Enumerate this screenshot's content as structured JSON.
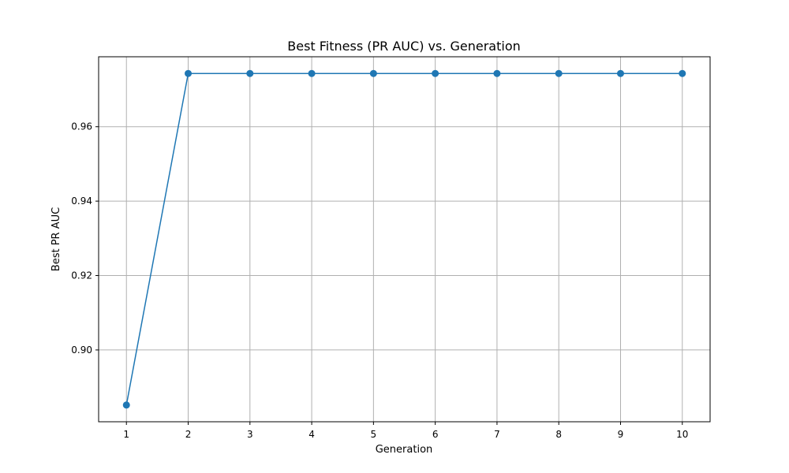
{
  "chart_data": {
    "type": "line",
    "title": "Best Fitness (PR AUC) vs. Generation",
    "xlabel": "Generation",
    "ylabel": "Best PR AUC",
    "x": [
      1,
      2,
      3,
      4,
      5,
      6,
      7,
      8,
      9,
      10
    ],
    "series": [
      {
        "name": "Best PR AUC",
        "values": [
          0.8852,
          0.9743,
          0.9743,
          0.9743,
          0.9743,
          0.9743,
          0.9743,
          0.9743,
          0.9743,
          0.9743
        ],
        "color": "#1f77b4",
        "marker": "circle"
      }
    ],
    "xlim": [
      0.55,
      10.45
    ],
    "ylim": [
      0.8807,
      0.9788
    ],
    "xticks": [
      1,
      2,
      3,
      4,
      5,
      6,
      7,
      8,
      9,
      10
    ],
    "xtick_labels": [
      "1",
      "2",
      "3",
      "4",
      "5",
      "6",
      "7",
      "8",
      "9",
      "10"
    ],
    "yticks": [
      0.9,
      0.92,
      0.94,
      0.96
    ],
    "ytick_labels": [
      "0.90",
      "0.92",
      "0.94",
      "0.96"
    ],
    "grid": true,
    "legend": false
  }
}
